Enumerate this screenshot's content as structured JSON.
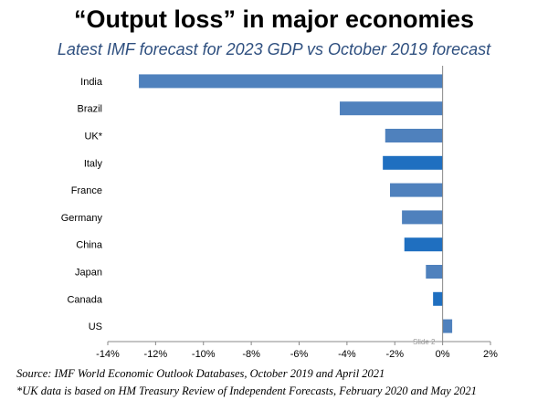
{
  "title": "“Output loss” in major economies",
  "subtitle": "Latest IMF forecast for 2023 GDP vs October 2019 forecast",
  "slide_label": "Slide 2",
  "notes": {
    "source": "Source: IMF World Economic Outlook Databases, October 2019 and April 2021",
    "uk_note": "*UK data is based on HM Treasury Review of Independent Forecasts, February 2020 and May 2021"
  },
  "colors": {
    "bar_light": "#4f81bd",
    "bar_dark": "#1f6fc0"
  },
  "chart_data": {
    "type": "bar",
    "orientation": "horizontal",
    "categories": [
      "India",
      "Brazil",
      "UK*",
      "Italy",
      "France",
      "Germany",
      "China",
      "Japan",
      "Canada",
      "US"
    ],
    "values": [
      -12.7,
      -4.3,
      -2.4,
      -2.5,
      -2.2,
      -1.7,
      -1.6,
      -0.7,
      -0.4,
      0.4
    ],
    "bar_colors": [
      "#4f81bd",
      "#4f81bd",
      "#4f81bd",
      "#1f6fc0",
      "#4f81bd",
      "#4f81bd",
      "#1f6fc0",
      "#4f81bd",
      "#1f6fc0",
      "#4f81bd"
    ],
    "xlim": [
      -14,
      2
    ],
    "xticks": [
      "-14%",
      "-12%",
      "-10%",
      "-8%",
      "-6%",
      "-4%",
      "-2%",
      "0%",
      "2%"
    ],
    "grid": false,
    "legend": "none"
  }
}
